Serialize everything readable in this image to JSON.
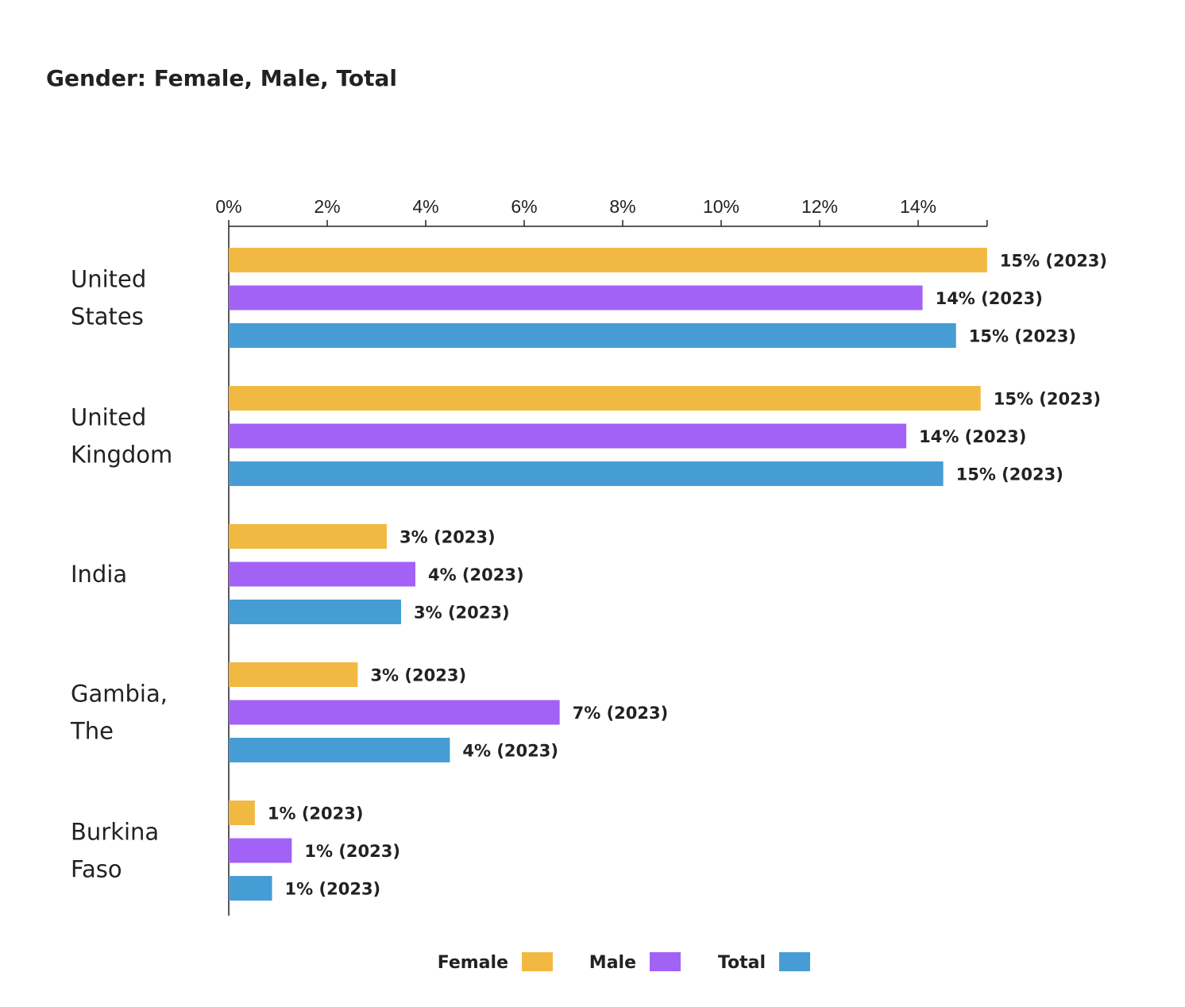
{
  "chart_data": {
    "type": "bar",
    "orientation": "horizontal",
    "title": "Gender: Female, Male, Total",
    "categories": [
      [
        "United",
        "States"
      ],
      [
        "United",
        "Kingdom"
      ],
      [
        "India"
      ],
      [
        "Gambia,",
        "The"
      ],
      [
        "Burkina",
        "Faso"
      ]
    ],
    "series": [
      {
        "name": "Female",
        "color": "#F2B942",
        "values": [
          15.4,
          15.27,
          3.21,
          2.62,
          0.53
        ],
        "labels": [
          "15% (2023)",
          "15% (2023)",
          "3% (2023)",
          "3% (2023)",
          "1% (2023)"
        ]
      },
      {
        "name": "Male",
        "color": "#A262F5",
        "values": [
          14.09,
          13.76,
          3.79,
          6.72,
          1.28
        ],
        "labels": [
          "14% (2023)",
          "14% (2023)",
          "4% (2023)",
          "7% (2023)",
          "1% (2023)"
        ]
      },
      {
        "name": "Total",
        "color": "#469DD6",
        "values": [
          14.77,
          14.51,
          3.5,
          4.49,
          0.88
        ],
        "labels": [
          "15% (2023)",
          "15% (2023)",
          "3% (2023)",
          "4% (2023)",
          "1% (2023)"
        ]
      }
    ],
    "x_ticks": [
      "0%",
      "2%",
      "4%",
      "6%",
      "8%",
      "10%",
      "12%",
      "14%"
    ],
    "x_tick_values": [
      0,
      2,
      4,
      6,
      8,
      10,
      12,
      14
    ],
    "xlim": [
      0,
      15.4
    ],
    "axis_position": "top",
    "grid": false,
    "legend": "bottom-center"
  }
}
